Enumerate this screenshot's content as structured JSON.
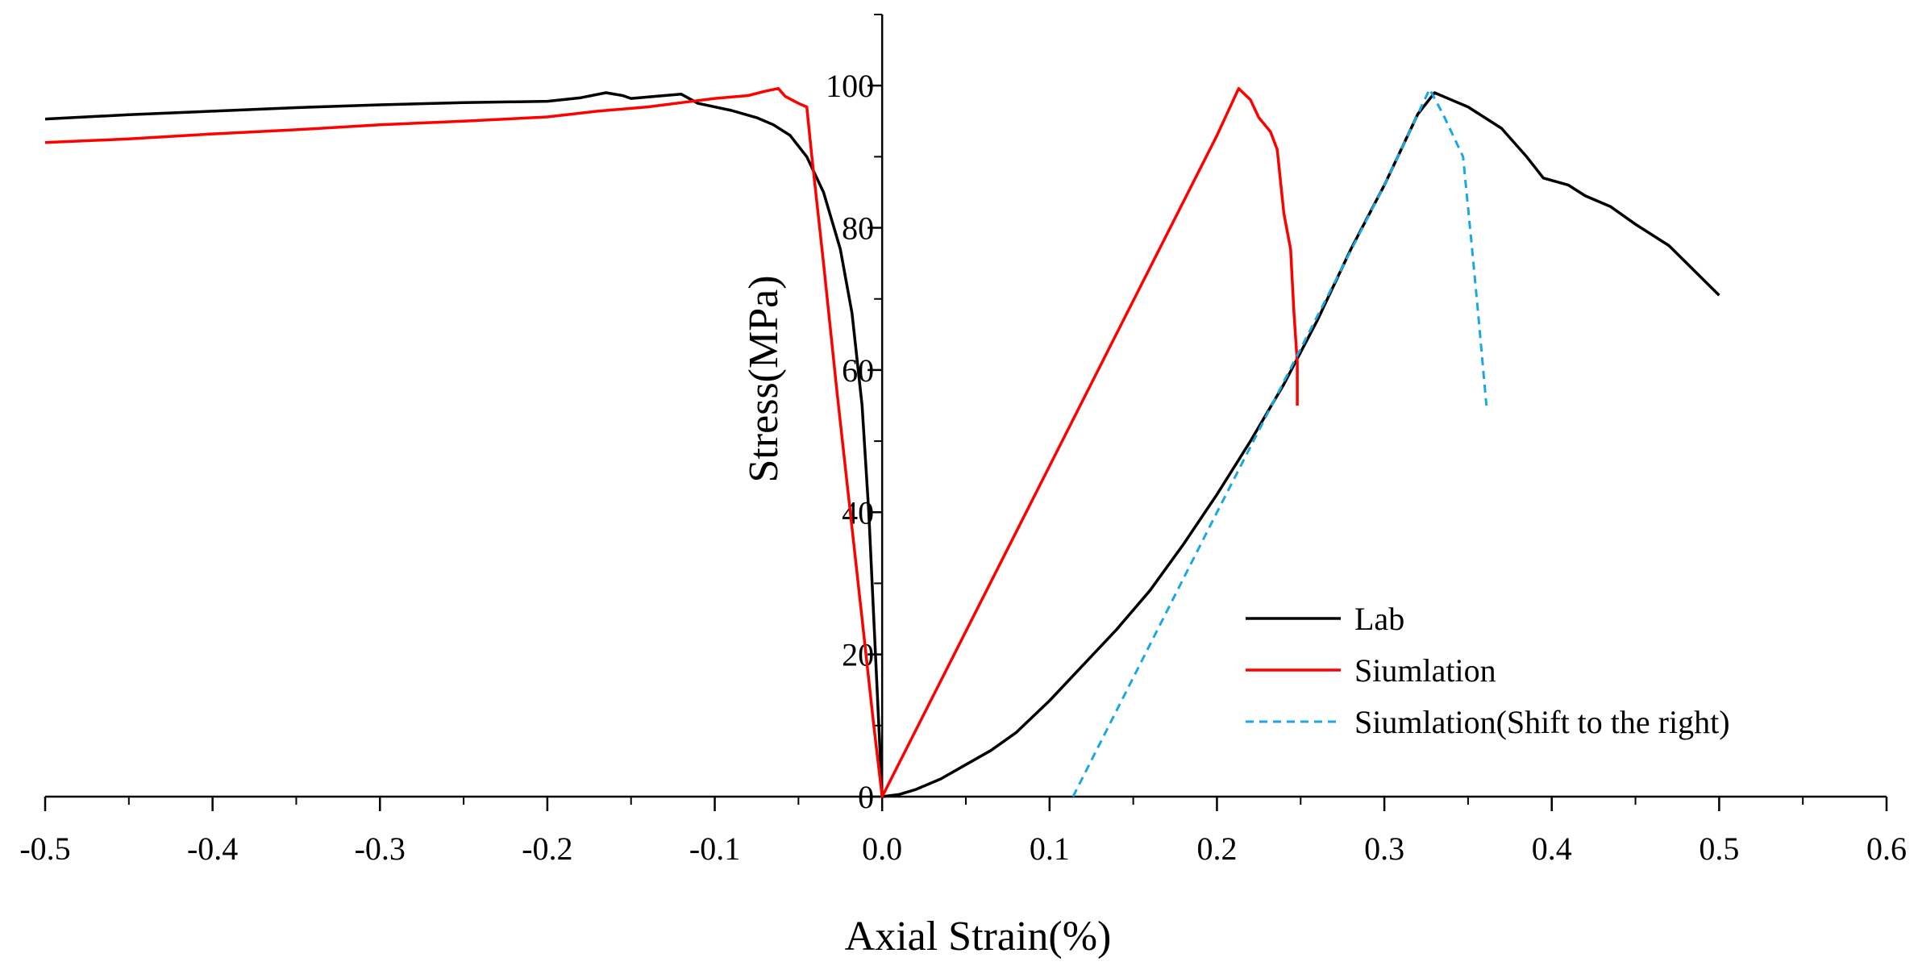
{
  "chart_data": {
    "type": "line",
    "title": "",
    "xlabel": "Axial Strain(%)",
    "ylabel": "Stress(MPa)",
    "xlim": [
      -0.5,
      0.6
    ],
    "ylim": [
      0,
      110
    ],
    "x_ticks": [
      -0.5,
      -0.4,
      -0.3,
      -0.2,
      -0.1,
      0.0,
      0.1,
      0.2,
      0.3,
      0.4,
      0.5,
      0.6
    ],
    "x_tick_labels": [
      "-0.5",
      "-0.4",
      "-0.3",
      "-0.2",
      "-0.1",
      "0.0",
      "0.1",
      "0.2",
      "0.3",
      "0.4",
      "0.5",
      "0.6"
    ],
    "y_ticks": [
      0,
      20,
      40,
      60,
      80,
      100
    ],
    "y_tick_labels": [
      "0",
      "20",
      "40",
      "60",
      "80",
      "100"
    ],
    "grid": false,
    "legend_position": "bottom-right",
    "series": [
      {
        "name": "Lab",
        "color": "#000000",
        "dash": "solid",
        "points": [
          [
            -0.5,
            95.3
          ],
          [
            -0.45,
            95.9
          ],
          [
            -0.4,
            96.4
          ],
          [
            -0.35,
            96.9
          ],
          [
            -0.3,
            97.3
          ],
          [
            -0.25,
            97.6
          ],
          [
            -0.2,
            97.8
          ],
          [
            -0.18,
            98.3
          ],
          [
            -0.165,
            99.0
          ],
          [
            -0.155,
            98.6
          ],
          [
            -0.15,
            98.2
          ],
          [
            -0.13,
            98.6
          ],
          [
            -0.12,
            98.8
          ],
          [
            -0.11,
            97.5
          ],
          [
            -0.1,
            97.0
          ],
          [
            -0.09,
            96.5
          ],
          [
            -0.075,
            95.5
          ],
          [
            -0.065,
            94.5
          ],
          [
            -0.055,
            93.0
          ],
          [
            -0.045,
            90.0
          ],
          [
            -0.035,
            85.0
          ],
          [
            -0.025,
            77.0
          ],
          [
            -0.018,
            68.0
          ],
          [
            -0.012,
            55.0
          ],
          [
            -0.008,
            40.0
          ],
          [
            -0.004,
            20.0
          ],
          [
            0.0,
            0.0
          ],
          [
            0.01,
            0.3
          ],
          [
            0.02,
            1.0
          ],
          [
            0.035,
            2.5
          ],
          [
            0.05,
            4.5
          ],
          [
            0.065,
            6.5
          ],
          [
            0.08,
            9.0
          ],
          [
            0.1,
            13.5
          ],
          [
            0.12,
            18.5
          ],
          [
            0.14,
            23.5
          ],
          [
            0.16,
            29.0
          ],
          [
            0.18,
            35.5
          ],
          [
            0.2,
            42.5
          ],
          [
            0.22,
            50.0
          ],
          [
            0.24,
            58.0
          ],
          [
            0.26,
            67.0
          ],
          [
            0.28,
            77.0
          ],
          [
            0.3,
            86.0
          ],
          [
            0.31,
            91.0
          ],
          [
            0.32,
            96.0
          ],
          [
            0.33,
            99.0
          ],
          [
            0.34,
            98.0
          ],
          [
            0.35,
            97.0
          ],
          [
            0.37,
            94.0
          ],
          [
            0.385,
            90.0
          ],
          [
            0.395,
            87.0
          ],
          [
            0.41,
            86.0
          ],
          [
            0.42,
            84.5
          ],
          [
            0.435,
            83.0
          ],
          [
            0.45,
            80.5
          ],
          [
            0.47,
            77.5
          ],
          [
            0.5,
            70.5
          ]
        ]
      },
      {
        "name": "Siumlation",
        "color": "#ff0000",
        "dash": "solid",
        "points": [
          [
            -0.5,
            92.0
          ],
          [
            -0.45,
            92.5
          ],
          [
            -0.4,
            93.2
          ],
          [
            -0.35,
            93.8
          ],
          [
            -0.3,
            94.5
          ],
          [
            -0.25,
            95.0
          ],
          [
            -0.2,
            95.6
          ],
          [
            -0.17,
            96.4
          ],
          [
            -0.14,
            97.0
          ],
          [
            -0.12,
            97.6
          ],
          [
            -0.1,
            98.2
          ],
          [
            -0.08,
            98.6
          ],
          [
            -0.07,
            99.2
          ],
          [
            -0.062,
            99.6
          ],
          [
            -0.058,
            98.5
          ],
          [
            -0.05,
            97.5
          ],
          [
            -0.045,
            97.0
          ],
          [
            -0.042,
            90.0
          ],
          [
            -0.035,
            75.0
          ],
          [
            -0.027,
            57.0
          ],
          [
            -0.02,
            42.0
          ],
          [
            -0.012,
            25.0
          ],
          [
            -0.005,
            10.0
          ],
          [
            0.0,
            0.0
          ],
          [
            0.1,
            46.5
          ],
          [
            0.2,
            93.0
          ],
          [
            0.213,
            99.6
          ],
          [
            0.22,
            98.0
          ],
          [
            0.225,
            95.5
          ],
          [
            0.232,
            93.5
          ],
          [
            0.236,
            91.0
          ],
          [
            0.24,
            82.0
          ],
          [
            0.244,
            77.0
          ],
          [
            0.246,
            68.0
          ],
          [
            0.248,
            61.0
          ],
          [
            0.248,
            55.0
          ]
        ]
      },
      {
        "name": "Siumlation(Shift to the right)",
        "color": "#1aa7e6",
        "dash": "dashed",
        "points": [
          [
            0.114,
            0.0
          ],
          [
            0.2,
            40.0
          ],
          [
            0.3,
            86.0
          ],
          [
            0.327,
            99.5
          ],
          [
            0.335,
            96.0
          ],
          [
            0.343,
            92.0
          ],
          [
            0.347,
            90.0
          ],
          [
            0.352,
            78.0
          ],
          [
            0.356,
            68.0
          ],
          [
            0.361,
            55.0
          ]
        ]
      }
    ]
  }
}
